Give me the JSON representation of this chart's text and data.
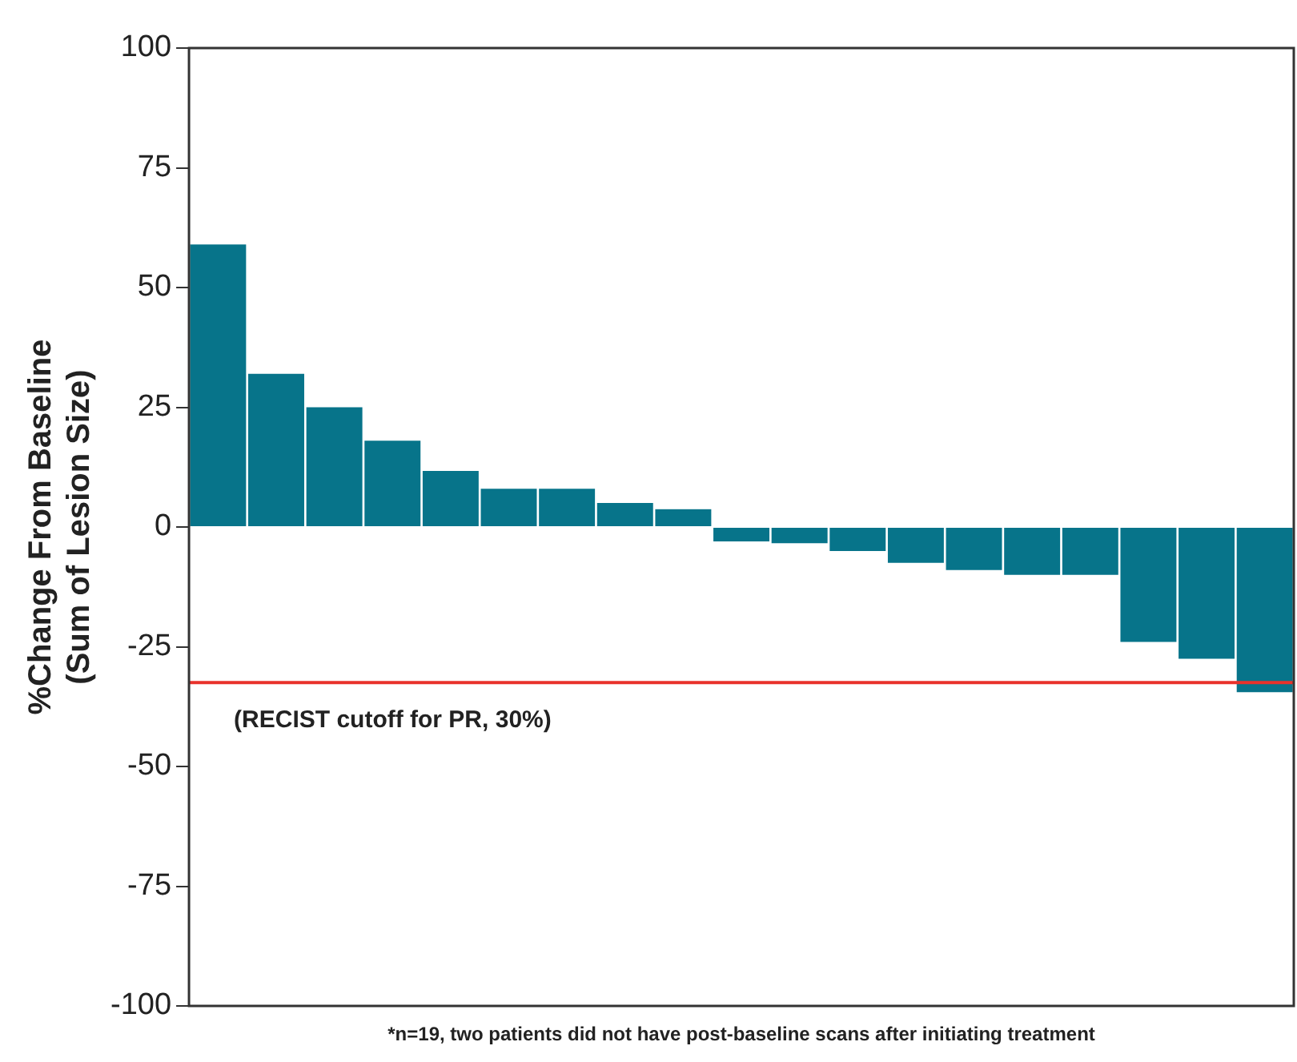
{
  "chart_data": {
    "type": "bar",
    "ylabel": "%Change From Baseline\n(Sum of Lesion Size)",
    "categories": [
      null,
      null,
      null,
      null,
      null,
      null,
      null,
      null,
      null,
      null,
      null,
      null,
      null,
      null,
      null,
      null,
      null,
      null,
      null
    ],
    "values": [
      59,
      32,
      25,
      18,
      11.7,
      8,
      8,
      5,
      3.7,
      -3,
      -3.4,
      -5,
      -7.5,
      -9,
      -10,
      -10,
      -24,
      -27.5,
      -34.5
    ],
    "color": "#07748a",
    "ylim": [
      -100,
      100
    ],
    "yticks": [
      -100,
      -75,
      -50,
      -25,
      0,
      25,
      50,
      75,
      100
    ],
    "grid": false,
    "tick_labels": "y",
    "ref_lines": [
      {
        "axis": "y",
        "value": -32.5,
        "label": "(RECIST cutoff for PR, 30%)",
        "color": "#e8322b"
      }
    ],
    "annotations": [
      "*n=19, two patients did not have post-baseline scans after initiating treatment"
    ]
  }
}
